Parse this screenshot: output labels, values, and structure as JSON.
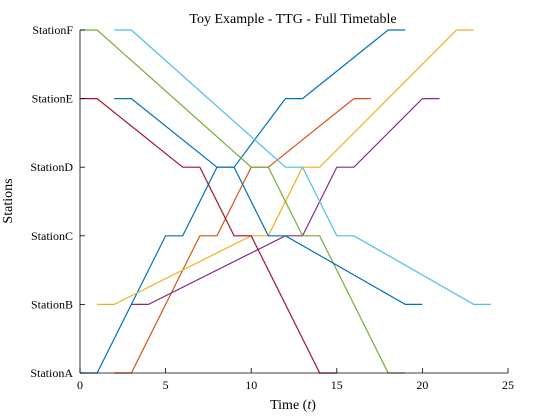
{
  "chart_data": {
    "type": "line",
    "title": "Toy Example - TTG - Full Timetable",
    "xlabel_text": "Time (",
    "xlabel_var": "t",
    "xlabel_close": ")",
    "ylabel": "Stations",
    "xlim": [
      0,
      25
    ],
    "x_ticks": [
      0,
      5,
      10,
      15,
      20,
      25
    ],
    "categories": [
      "StationA",
      "StationB",
      "StationC",
      "StationD",
      "StationE",
      "StationF"
    ],
    "grid": false,
    "legend": "none",
    "series": [
      {
        "color": "#0072BD",
        "points": [
          [
            0,
            0
          ],
          [
            1,
            0
          ],
          [
            5,
            2
          ],
          [
            6,
            2
          ],
          [
            8,
            3
          ],
          [
            9,
            3
          ],
          [
            12,
            4
          ],
          [
            13,
            4
          ],
          [
            18,
            5
          ],
          [
            19,
            5
          ]
        ]
      },
      {
        "color": "#D95319",
        "points": [
          [
            2,
            0
          ],
          [
            3,
            0
          ],
          [
            7,
            2
          ],
          [
            8,
            2
          ],
          [
            10,
            3
          ],
          [
            11,
            3
          ],
          [
            16,
            4
          ],
          [
            17,
            4
          ]
        ]
      },
      {
        "color": "#EDB120",
        "points": [
          [
            1,
            1
          ],
          [
            2,
            1
          ],
          [
            10,
            2
          ],
          [
            11,
            2
          ],
          [
            13,
            3
          ],
          [
            14,
            3
          ],
          [
            22,
            5
          ],
          [
            23,
            5
          ]
        ]
      },
      {
        "color": "#7E2F8E",
        "points": [
          [
            3,
            1
          ],
          [
            4,
            1
          ],
          [
            12,
            2
          ],
          [
            13,
            2
          ],
          [
            15,
            3
          ],
          [
            16,
            3
          ],
          [
            20,
            4
          ],
          [
            21,
            4
          ]
        ]
      },
      {
        "color": "#77AC30",
        "points": [
          [
            0,
            5
          ],
          [
            1,
            5
          ],
          [
            10,
            3
          ],
          [
            11,
            3
          ],
          [
            13,
            2
          ],
          [
            14,
            2
          ],
          [
            18,
            0
          ],
          [
            19,
            0
          ]
        ]
      },
      {
        "color": "#4DBEEE",
        "points": [
          [
            2,
            5
          ],
          [
            3,
            5
          ],
          [
            12,
            3
          ],
          [
            13,
            3
          ],
          [
            15,
            2
          ],
          [
            16,
            2
          ],
          [
            23,
            1
          ],
          [
            24,
            1
          ]
        ]
      },
      {
        "color": "#A2142F",
        "points": [
          [
            0,
            4
          ],
          [
            1,
            4
          ],
          [
            6,
            3
          ],
          [
            7,
            3
          ],
          [
            9,
            2
          ],
          [
            10,
            2
          ],
          [
            14,
            0
          ],
          [
            15,
            0
          ]
        ]
      },
      {
        "color": "#0072BD",
        "points": [
          [
            2,
            4
          ],
          [
            3,
            4
          ],
          [
            8,
            3
          ],
          [
            9,
            3
          ],
          [
            11,
            2
          ],
          [
            12,
            2
          ],
          [
            19,
            1
          ],
          [
            20,
            1
          ]
        ]
      }
    ]
  }
}
